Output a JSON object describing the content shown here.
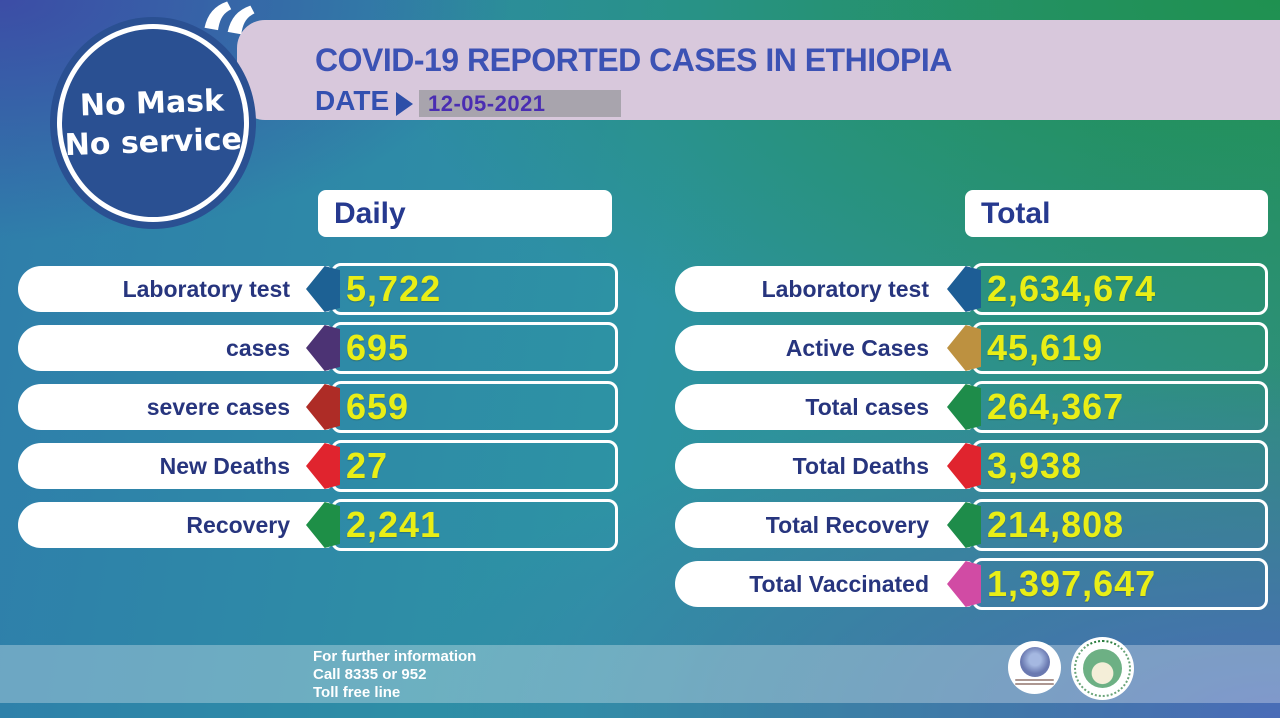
{
  "badge": {
    "line1": "No Mask",
    "line2": "No service"
  },
  "header": {
    "title": "COVID-19 REPORTED CASES IN ETHIOPIA",
    "date_label": "DATE",
    "date_value": "12-05-2021"
  },
  "daily": {
    "header": "Daily",
    "rows": [
      {
        "label": "Laboratory test",
        "value": "5,722",
        "color": "#1d6194"
      },
      {
        "label": "cases",
        "value": "695",
        "color": "#4c3374"
      },
      {
        "label": "severe cases",
        "value": "659",
        "color": "#ae2c26"
      },
      {
        "label": "New Deaths",
        "value": "27",
        "color": "#e0242e"
      },
      {
        "label": "Recovery",
        "value": "2,241",
        "color": "#1e8f47"
      }
    ]
  },
  "total": {
    "header": "Total",
    "rows": [
      {
        "label": "Laboratory test",
        "value": "2,634,674",
        "color": "#1d5d95"
      },
      {
        "label": "Active Cases",
        "value": "45,619",
        "color": "#bd9140"
      },
      {
        "label": "Total cases",
        "value": "264,367",
        "color": "#1e8c4a"
      },
      {
        "label": "Total Deaths",
        "value": "3,938",
        "color": "#e0242e"
      },
      {
        "label": "Total Recovery",
        "value": "214,808",
        "color": "#1e8c4a"
      },
      {
        "label": "Total Vaccinated",
        "value": "1,397,647",
        "color": "#d14ba4"
      }
    ]
  },
  "footer": {
    "lines": [
      "For further information",
      "Call 8335 or 952",
      "Toll free line"
    ],
    "icons": [
      "ministry-of-health-logo",
      "public-health-institute-logo"
    ]
  },
  "colors": {
    "label_text": "#27357e",
    "value_text": "#e9ee16",
    "title_text": "#3c52b4",
    "date_text": "#4a2db2",
    "band_pink": "#d8c8dc",
    "chip_gray": "#a8a4ad",
    "badge_blue": "#2a5092",
    "bg_top_left": "#3c4da6",
    "bg_teal": "#2d93a4",
    "bg_green": "#1f9150",
    "bg_bottom_right": "#4a6cb8"
  },
  "chart_data": {
    "type": "table",
    "title": "COVID-19 REPORTED CASES IN ETHIOPIA",
    "date": "12-05-2021",
    "columns": [
      "Daily",
      "Total"
    ],
    "daily": {
      "Laboratory test": 5722,
      "cases": 695,
      "severe cases": 659,
      "New Deaths": 27,
      "Recovery": 2241
    },
    "total": {
      "Laboratory test": 2634674,
      "Active Cases": 45619,
      "Total cases": 264367,
      "Total Deaths": 3938,
      "Total Recovery": 214808,
      "Total Vaccinated": 1397647
    }
  }
}
